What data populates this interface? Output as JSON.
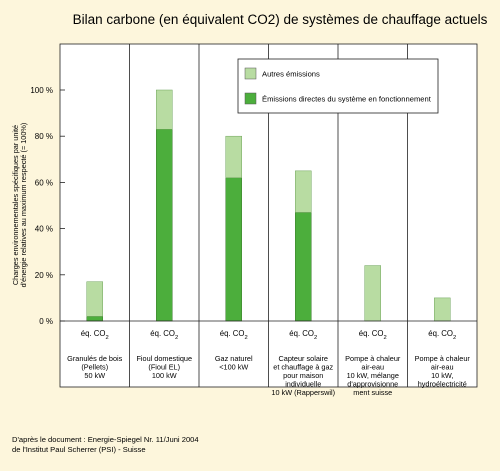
{
  "chart_data": {
    "type": "bar",
    "title": "Bilan carbone (en équivalent CO2) de systèmes de chauffage actuels",
    "ylabel_lines": [
      "Charges environnementales spécifiques par unité",
      "d'énergie relatives au maximum respecté (= 100%)"
    ],
    "ylim": [
      0,
      100
    ],
    "yticks": [
      "0 %",
      "20 %",
      "40 %",
      "60 %",
      "80 %",
      "100 %"
    ],
    "grid": false,
    "legend_position": "top-right",
    "equiv_label": "éq. CO",
    "equiv_sub": "2",
    "categories": [
      {
        "lines": [
          "Granulés de bois",
          "(Pellets)",
          "50 kW"
        ]
      },
      {
        "lines": [
          "Fioul domestique",
          "(Fioul EL)",
          "100 kW"
        ]
      },
      {
        "lines": [
          "Gaz naturel",
          "<100 kW"
        ]
      },
      {
        "lines": [
          "Capteur solaire",
          "et chauffage à gaz",
          "pour maison",
          "individuelle",
          "10 kW (Rapperswil)"
        ]
      },
      {
        "lines": [
          "Pompe à chaleur",
          "air-eau",
          "10 kW, mélange",
          "d'approvisionne",
          "ment suisse"
        ]
      },
      {
        "lines": [
          "Pompe à chaleur",
          "air-eau",
          "10 kW,",
          "hydroélectricité"
        ]
      }
    ],
    "series": [
      {
        "name": "Émissions directes du système en fonctionnement",
        "color": "#4cae3c",
        "values": [
          2,
          83,
          62,
          47,
          0,
          0
        ]
      },
      {
        "name": "Autres émissions",
        "color": "#b8dca2",
        "values": [
          15,
          17,
          18,
          18,
          24,
          10
        ]
      }
    ],
    "source_lines": [
      "D'après le document : Energie-Spiegel Nr. 11/Juni 2004",
      "de l'Institut Paul Scherrer (PSI) - Suisse"
    ]
  }
}
